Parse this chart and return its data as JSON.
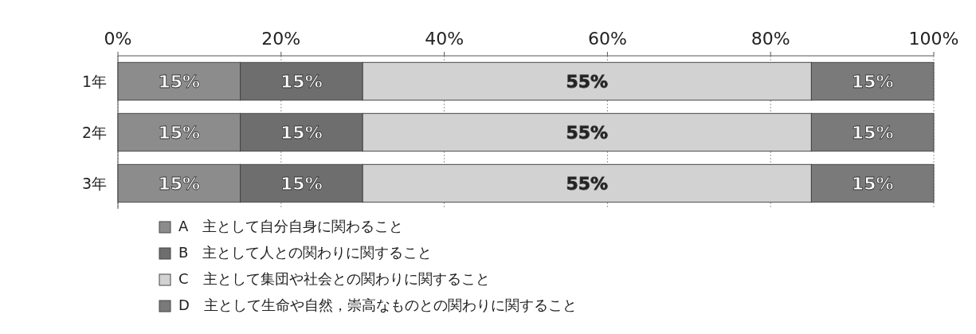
{
  "chart_data": {
    "type": "bar",
    "orientation": "horizontal",
    "stacked": true,
    "categories": [
      "1年",
      "2年",
      "3年"
    ],
    "series": [
      {
        "name": "A　主として自分自身に関わること",
        "color": "#8c8c8c",
        "values": [
          15,
          15,
          15
        ],
        "value_labels": [
          "15%",
          "15%",
          "15%"
        ]
      },
      {
        "name": "B　主として人との関わりに関すること",
        "color": "#6e6e6e",
        "values": [
          15,
          15,
          15
        ],
        "value_labels": [
          "15%",
          "15%",
          "15%"
        ]
      },
      {
        "name": "C　主として集団や社会との関わりに関すること",
        "color": "#d2d2d2",
        "values": [
          55,
          55,
          55
        ],
        "value_labels": [
          "55%",
          "55%",
          "55%"
        ]
      },
      {
        "name": "D　主として生命や自然，崇高なものとの関わりに関すること",
        "color": "#7a7a7a",
        "values": [
          15,
          15,
          15
        ],
        "value_labels": [
          "15%",
          "15%",
          "15%"
        ]
      }
    ],
    "xlim": [
      0,
      100
    ],
    "xticks": [
      {
        "value": 0,
        "label": "0%"
      },
      {
        "value": 20,
        "label": "20%"
      },
      {
        "value": 40,
        "label": "40%"
      },
      {
        "value": 60,
        "label": "60%"
      },
      {
        "value": 80,
        "label": "80%"
      },
      {
        "value": 100,
        "label": "100%"
      }
    ],
    "grid": "x",
    "legend": "bottom"
  }
}
